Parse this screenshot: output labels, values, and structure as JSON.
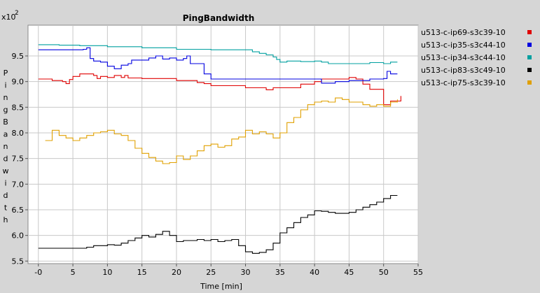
{
  "chart_data": {
    "type": "line",
    "title": "PingBandwidth",
    "xlabel": "Time [min]",
    "ylabel": "PingBandwidth",
    "y_multiplier_label": "x10",
    "y_multiplier_exponent": "2",
    "xlim": [
      -1.5,
      55
    ],
    "ylim": [
      5.45,
      10.1
    ],
    "x_ticks": [
      0,
      5,
      10,
      15,
      20,
      25,
      30,
      35,
      40,
      45,
      50,
      55
    ],
    "x_tick_labels": [
      "-0",
      "5",
      "10",
      "15",
      "20",
      "25",
      "30",
      "35",
      "40",
      "45",
      "50",
      "55"
    ],
    "y_ticks": [
      5.5,
      6.0,
      6.5,
      7.0,
      7.5,
      8.0,
      8.5,
      9.0,
      9.5
    ],
    "y_tick_labels": [
      "5.5",
      "6.0",
      "6.5",
      "7.0",
      "7.5",
      "8.0",
      "8.5",
      "9.0",
      "9.5"
    ],
    "grid": true,
    "legend_placement": "right",
    "series": [
      {
        "name": "u513-c-ip69-s3c39-10",
        "color": "#e00000",
        "x": [
          0,
          2,
          3.5,
          4,
          4.5,
          5,
          6,
          8,
          8.5,
          9,
          10,
          11,
          12,
          12.5,
          13,
          15,
          20,
          23,
          24,
          25,
          30,
          33,
          34,
          38,
          40,
          41,
          45,
          46,
          47,
          48,
          49,
          50,
          51,
          52,
          52.5
        ],
        "y": [
          9.05,
          9.02,
          9.0,
          8.96,
          9.04,
          9.1,
          9.15,
          9.12,
          9.06,
          9.1,
          9.08,
          9.12,
          9.08,
          9.12,
          9.07,
          9.06,
          9.02,
          8.98,
          8.96,
          8.92,
          8.88,
          8.84,
          8.88,
          8.95,
          9.0,
          9.05,
          9.08,
          9.05,
          8.95,
          8.85,
          8.85,
          8.55,
          8.62,
          8.62,
          8.72
        ]
      },
      {
        "name": "u513-c-ip35-s3c44-10",
        "color": "#0000e0",
        "x": [
          0,
          5,
          6.5,
          7,
          7.5,
          8,
          9,
          10,
          11,
          12,
          13,
          13.5,
          15,
          16,
          17,
          18,
          19,
          20,
          21,
          21.5,
          22,
          24,
          25,
          30,
          35,
          40,
          41,
          43,
          45,
          48,
          50,
          50.5,
          51,
          52
        ],
        "y": [
          9.62,
          9.62,
          9.63,
          9.66,
          9.45,
          9.4,
          9.38,
          9.3,
          9.25,
          9.32,
          9.35,
          9.42,
          9.42,
          9.46,
          9.5,
          9.44,
          9.46,
          9.42,
          9.45,
          9.5,
          9.35,
          9.15,
          9.05,
          9.05,
          9.05,
          9.05,
          8.97,
          9.0,
          9.02,
          9.05,
          9.06,
          9.2,
          9.15,
          9.15
        ]
      },
      {
        "name": "u513-c-ip34-s3c44-10",
        "color": "#00a0a0",
        "x": [
          0,
          3,
          6,
          10,
          15,
          20,
          25,
          30,
          31,
          32,
          33,
          34,
          34.5,
          35,
          36,
          38,
          40,
          41,
          42,
          45,
          48,
          50,
          51,
          52
        ],
        "y": [
          9.72,
          9.71,
          9.7,
          9.68,
          9.66,
          9.63,
          9.62,
          9.62,
          9.58,
          9.55,
          9.52,
          9.48,
          9.43,
          9.38,
          9.4,
          9.39,
          9.4,
          9.38,
          9.35,
          9.35,
          9.37,
          9.35,
          9.38,
          9.38
        ]
      },
      {
        "name": "u513-c-ip83-s3c49-10",
        "color": "#000000",
        "x": [
          0,
          6,
          7,
          8,
          9,
          10,
          11,
          12,
          13,
          14,
          15,
          16,
          17,
          18,
          19,
          20,
          21,
          23,
          24,
          25,
          26,
          27,
          28,
          29,
          30,
          31,
          32,
          33,
          34,
          35,
          36,
          37,
          38,
          39,
          40,
          41,
          42,
          43,
          44,
          45,
          46,
          47,
          48,
          49,
          50,
          51,
          52
        ],
        "y": [
          5.75,
          5.75,
          5.77,
          5.8,
          5.8,
          5.82,
          5.81,
          5.85,
          5.9,
          5.95,
          6.0,
          5.97,
          6.02,
          6.08,
          6.0,
          5.88,
          5.9,
          5.92,
          5.9,
          5.92,
          5.88,
          5.9,
          5.92,
          5.8,
          5.68,
          5.65,
          5.67,
          5.72,
          5.85,
          6.05,
          6.15,
          6.25,
          6.35,
          6.4,
          6.48,
          6.47,
          6.45,
          6.43,
          6.43,
          6.45,
          6.5,
          6.55,
          6.6,
          6.65,
          6.72,
          6.78,
          6.78
        ]
      },
      {
        "name": "u513-c-ip75-s3c39-10",
        "color": "#e0a000",
        "x": [
          1,
          2,
          3,
          4,
          5,
          6,
          7,
          8,
          9,
          10,
          11,
          12,
          13,
          14,
          15,
          16,
          17,
          18,
          19,
          20,
          21,
          22,
          23,
          24,
          25,
          26,
          27,
          28,
          29,
          30,
          31,
          32,
          33,
          34,
          35,
          36,
          37,
          38,
          39,
          40,
          41,
          42,
          43,
          44,
          45,
          46,
          47,
          48,
          49,
          50,
          51,
          52
        ],
        "y": [
          7.85,
          8.05,
          7.95,
          7.9,
          7.85,
          7.9,
          7.95,
          8.0,
          8.02,
          8.05,
          7.98,
          7.95,
          7.85,
          7.7,
          7.6,
          7.52,
          7.45,
          7.4,
          7.42,
          7.55,
          7.48,
          7.55,
          7.65,
          7.75,
          7.78,
          7.72,
          7.75,
          7.88,
          7.92,
          8.05,
          7.98,
          8.02,
          7.98,
          7.9,
          8.0,
          8.2,
          8.3,
          8.45,
          8.55,
          8.6,
          8.62,
          8.6,
          8.68,
          8.65,
          8.6,
          8.6,
          8.55,
          8.52,
          8.55,
          8.52,
          8.6,
          8.65
        ]
      }
    ]
  }
}
